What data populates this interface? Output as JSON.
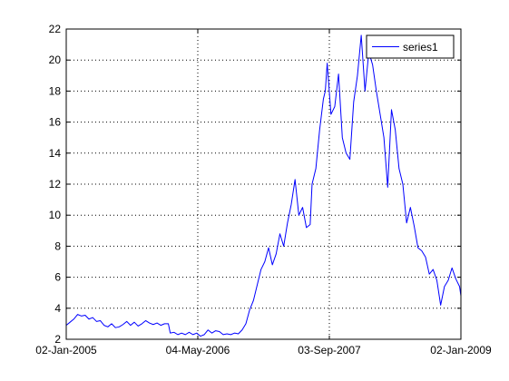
{
  "chart_data": {
    "type": "line",
    "title": "",
    "xlabel": "",
    "ylabel": "",
    "grid": true,
    "legend_position": "top-right",
    "x_range": [
      "2005-01-02",
      "2009-01-02"
    ],
    "ylim": [
      2,
      22
    ],
    "x_ticks": [
      "02-Jan-2005",
      "04-May-2006",
      "03-Sep-2007",
      "02-Jan-2009"
    ],
    "x_tick_dates": [
      "2005-01-02",
      "2006-05-04",
      "2007-09-03",
      "2009-01-02"
    ],
    "y_ticks": [
      "2",
      "4",
      "6",
      "8",
      "10",
      "12",
      "14",
      "16",
      "18",
      "20",
      "22"
    ],
    "series": [
      {
        "name": "series1",
        "color": "#0000ff",
        "points": [
          [
            "2005-01-02",
            2.9
          ],
          [
            "2005-01-16",
            3.1
          ],
          [
            "2005-01-30",
            3.3
          ],
          [
            "2005-02-13",
            3.6
          ],
          [
            "2005-02-27",
            3.5
          ],
          [
            "2005-03-13",
            3.55
          ],
          [
            "2005-03-27",
            3.3
          ],
          [
            "2005-04-10",
            3.4
          ],
          [
            "2005-04-24",
            3.15
          ],
          [
            "2005-05-08",
            3.2
          ],
          [
            "2005-05-22",
            2.9
          ],
          [
            "2005-06-05",
            2.8
          ],
          [
            "2005-06-19",
            3.0
          ],
          [
            "2005-07-03",
            2.75
          ],
          [
            "2005-07-17",
            2.8
          ],
          [
            "2005-07-31",
            2.95
          ],
          [
            "2005-08-14",
            3.15
          ],
          [
            "2005-08-28",
            2.9
          ],
          [
            "2005-09-11",
            3.1
          ],
          [
            "2005-09-25",
            2.85
          ],
          [
            "2005-10-09",
            3.0
          ],
          [
            "2005-10-23",
            3.2
          ],
          [
            "2005-11-06",
            3.05
          ],
          [
            "2005-11-20",
            2.95
          ],
          [
            "2005-12-04",
            3.05
          ],
          [
            "2005-12-18",
            2.9
          ],
          [
            "2006-01-01",
            3.0
          ],
          [
            "2006-01-15",
            3.0
          ],
          [
            "2006-01-22",
            2.4
          ],
          [
            "2006-02-05",
            2.45
          ],
          [
            "2006-02-19",
            2.3
          ],
          [
            "2006-03-05",
            2.4
          ],
          [
            "2006-03-19",
            2.3
          ],
          [
            "2006-04-02",
            2.45
          ],
          [
            "2006-04-16",
            2.3
          ],
          [
            "2006-04-30",
            2.4
          ],
          [
            "2006-05-14",
            2.2
          ],
          [
            "2006-05-28",
            2.3
          ],
          [
            "2006-06-11",
            2.6
          ],
          [
            "2006-06-25",
            2.4
          ],
          [
            "2006-07-09",
            2.55
          ],
          [
            "2006-07-23",
            2.5
          ],
          [
            "2006-08-06",
            2.3
          ],
          [
            "2006-08-20",
            2.35
          ],
          [
            "2006-09-03",
            2.3
          ],
          [
            "2006-09-17",
            2.4
          ],
          [
            "2006-10-01",
            2.35
          ],
          [
            "2006-10-15",
            2.6
          ],
          [
            "2006-10-29",
            3.0
          ],
          [
            "2006-11-12",
            3.9
          ],
          [
            "2006-11-26",
            4.5
          ],
          [
            "2006-12-10",
            5.5
          ],
          [
            "2006-12-24",
            6.5
          ],
          [
            "2007-01-07",
            7.0
          ],
          [
            "2007-01-21",
            7.9
          ],
          [
            "2007-02-04",
            6.8
          ],
          [
            "2007-02-18",
            7.5
          ],
          [
            "2007-03-04",
            8.8
          ],
          [
            "2007-03-18",
            8.0
          ],
          [
            "2007-04-01",
            9.5
          ],
          [
            "2007-04-15",
            10.7
          ],
          [
            "2007-04-29",
            12.3
          ],
          [
            "2007-05-13",
            10.0
          ],
          [
            "2007-05-27",
            10.5
          ],
          [
            "2007-06-10",
            9.2
          ],
          [
            "2007-06-24",
            9.4
          ],
          [
            "2007-07-01",
            12.0
          ],
          [
            "2007-07-15",
            13.0
          ],
          [
            "2007-07-29",
            15.5
          ],
          [
            "2007-08-12",
            17.5
          ],
          [
            "2007-08-19",
            18.0
          ],
          [
            "2007-08-26",
            19.8
          ],
          [
            "2007-09-09",
            16.5
          ],
          [
            "2007-09-23",
            17.0
          ],
          [
            "2007-10-07",
            19.1
          ],
          [
            "2007-10-21",
            15.0
          ],
          [
            "2007-11-04",
            14.0
          ],
          [
            "2007-11-18",
            13.6
          ],
          [
            "2007-12-02",
            17.3
          ],
          [
            "2007-12-16",
            19.0
          ],
          [
            "2007-12-30",
            21.6
          ],
          [
            "2008-01-13",
            18.0
          ],
          [
            "2008-01-27",
            20.5
          ],
          [
            "2008-02-10",
            19.7
          ],
          [
            "2008-02-24",
            18.0
          ],
          [
            "2008-03-09",
            16.5
          ],
          [
            "2008-03-23",
            15.0
          ],
          [
            "2008-04-06",
            11.8
          ],
          [
            "2008-04-20",
            16.8
          ],
          [
            "2008-05-04",
            15.5
          ],
          [
            "2008-05-18",
            13.0
          ],
          [
            "2008-06-01",
            12.0
          ],
          [
            "2008-06-15",
            9.5
          ],
          [
            "2008-06-29",
            10.5
          ],
          [
            "2008-07-13",
            9.3
          ],
          [
            "2008-07-27",
            7.9
          ],
          [
            "2008-08-10",
            7.7
          ],
          [
            "2008-08-24",
            7.3
          ],
          [
            "2008-09-07",
            6.2
          ],
          [
            "2008-09-21",
            6.5
          ],
          [
            "2008-10-05",
            5.8
          ],
          [
            "2008-10-19",
            4.2
          ],
          [
            "2008-11-02",
            5.4
          ],
          [
            "2008-11-16",
            5.8
          ],
          [
            "2008-11-30",
            6.6
          ],
          [
            "2008-12-14",
            5.9
          ],
          [
            "2008-12-28",
            5.4
          ],
          [
            "2009-01-02",
            4.8
          ]
        ]
      }
    ]
  }
}
